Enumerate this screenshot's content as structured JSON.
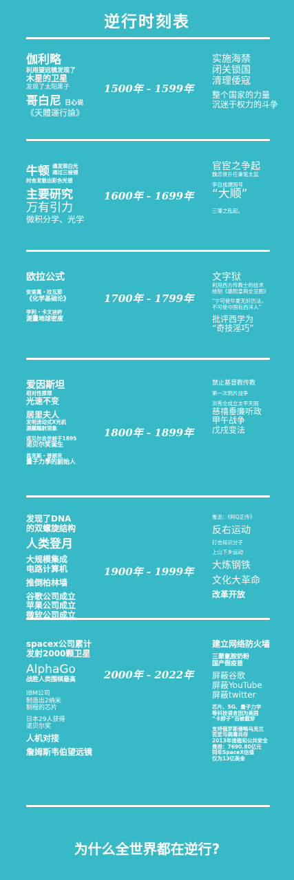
{
  "title": "逆行时刻表",
  "footer": "为什么全世界都在逆行?",
  "eras": [
    {
      "years": "1500年 - 1599年",
      "left": [
        "伽利略",
        "利用望远镜发现了",
        "木星的卫星",
        "发现了太阳黑子",
        "哥白尼",
        "日心说",
        "《天體運行論》"
      ],
      "right": [
        "实施海禁",
        "闭关锁国",
        "清理倭寇",
        "整个国家的力量",
        "沉迷于权力的斗争"
      ]
    },
    {
      "years": "1600年 - 1699年",
      "left": [
        "牛顿",
        "通发现白光",
        "通过三棱镜",
        "时会发散出彩色光谱",
        "主要研究",
        "万有引力",
        "微积分学、光学"
      ],
      "right": [
        "官宦之争起",
        "魏忠贤升任秉笔太监",
        "李自成建国号",
        "“大顺”",
        "三藩之乱起。"
      ]
    },
    {
      "years": "1700年 - 1799年",
      "left": [
        "欧拉公式",
        "安東萬・拉瓦節",
        "《化学基础论》",
        "李利・卡文迪許",
        "測量地球密度"
      ],
      "right": [
        "文字狱",
        "利用西方传教士的技术",
        "绘制《康熙皇舆全览图》",
        "“宁可使华夏无好历法，",
        "不可使中国有西洋人”",
        "批评西学为",
        "“奇技淫巧”"
      ]
    },
    {
      "years": "1800年 - 1899年",
      "left": [
        "爱因斯坦",
        "相对性原理",
        "光速不变",
        "居里夫人",
        "发明流动式X光机",
        "測藏輻射現象",
        "诺贝尔去世前于1895",
        "诺贝尔奖诞生",
        "馬克斯・普朗克",
        "量子力學的創始人"
      ],
      "right": [
        "禁止基督教传教",
        "第一次鸦片战争",
        "洪秀全成立太平天国",
        "慈禧垂廉听政",
        "甲午战争",
        "戊戌变法"
      ]
    },
    {
      "years": "1900年 - 1999年",
      "left": [
        "发现了DNA",
        "的双螺旋结构",
        "人类登月",
        "大规模集成",
        "电路计算机",
        "推倒柏林墙",
        "谷歌公司成立",
        "苹果公司成立",
        "微软公司成立"
      ],
      "right": [
        "鲁迅：《阿Q正传》",
        "反右运动",
        "打击知识分子",
        "上山下乡运动",
        "大炼钢铁",
        "文化大革命",
        "改革开放"
      ]
    },
    {
      "years": "2000年 - 2022年",
      "left": [
        "spacex公司累计",
        "发射2000颗卫星",
        "AlphaGo",
        "战胜人类围棋最高",
        "IBM公司",
        "制造出2纳米",
        "制程的芯片",
        "日本29人获得",
        "诺贝尔奖",
        "人机对接",
        "詹姆斯韦伯望远镜"
      ],
      "right": [
        "建立网络防火墙",
        "三聚氰胺奶粉",
        "国产假疫苗",
        "屏蔽谷歌",
        "屏蔽YouTube",
        "屏蔽twitter",
        "芯片、5G、量子力学",
        "等科技语言因为美国",
        "“卡脖子”而被截穿",
        "支持俄罗斯侵略乌克兰",
        "否定与病毒共存",
        "2013年维稳和公共安全",
        "费用：7690.80亿元",
        "同年SpaceX估值",
        "仅为13亿美金"
      ]
    }
  ]
}
